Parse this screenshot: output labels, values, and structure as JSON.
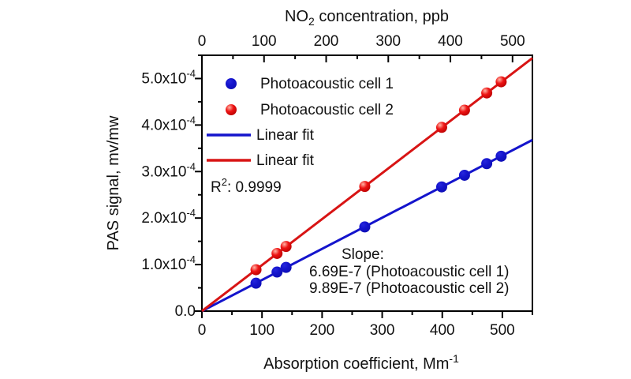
{
  "figure_background": "#ffffff",
  "chart_data": {
    "type": "scatter",
    "grid": false,
    "axes": {
      "top": {
        "title_parts": [
          {
            "t": "NO"
          },
          {
            "t": "2",
            "script": "sub"
          },
          {
            "t": " concentration, ppb"
          }
        ],
        "tick_values": [
          0,
          100,
          200,
          300,
          400,
          500
        ],
        "tick_labels": [
          "0",
          "100",
          "200",
          "300",
          "400",
          "500"
        ],
        "minor_step": 50,
        "range": [
          0,
          532
        ],
        "unit": "ppb"
      },
      "bottom": {
        "title_parts": [
          {
            "t": "Absorption coefficient, Mm"
          },
          {
            "t": "-1",
            "script": "sup"
          }
        ],
        "tick_values": [
          0,
          100,
          200,
          300,
          400,
          500
        ],
        "tick_labels": [
          "0",
          "100",
          "200",
          "300",
          "400",
          "500"
        ],
        "minor_step": 50,
        "range": [
          0,
          550
        ],
        "unit": "Mm^-1"
      },
      "left": {
        "title": "PAS signal, mv/mw",
        "tick_values": [
          0,
          0.0001,
          0.0002,
          0.0003,
          0.0004,
          0.0005
        ],
        "tick_labels": [
          [
            {
              "t": "0.0"
            }
          ],
          [
            {
              "t": "1.0x10"
            },
            {
              "t": "-4",
              "script": "sup"
            }
          ],
          [
            {
              "t": "2.0x10"
            },
            {
              "t": "-4",
              "script": "sup"
            }
          ],
          [
            {
              "t": "3.0x10"
            },
            {
              "t": "-4",
              "script": "sup"
            }
          ],
          [
            {
              "t": "4.0x10"
            },
            {
              "t": "-4",
              "script": "sup"
            }
          ],
          [
            {
              "t": "5.0x10"
            },
            {
              "t": "-4",
              "script": "sup"
            }
          ]
        ],
        "minor_step": 5e-05,
        "range": [
          0,
          0.00055
        ]
      }
    },
    "series": [
      {
        "name": "Photoacoustic cell 1",
        "color": "#1414cc",
        "marker": "circle-flat",
        "x": [
          90,
          125,
          140,
          271,
          399,
          437,
          474,
          498
        ],
        "y": [
          6e-05,
          8.4e-05,
          9.4e-05,
          0.000181,
          0.000267,
          0.000292,
          0.000317,
          0.000333
        ]
      },
      {
        "name": "Photoacoustic cell 2",
        "color": "#e01010",
        "marker": "circle-sphere",
        "x": [
          90,
          125,
          140,
          271,
          399,
          437,
          474,
          498
        ],
        "y": [
          8.9e-05,
          0.000124,
          0.000139,
          0.000268,
          0.000395,
          0.000432,
          0.000469,
          0.000493
        ]
      }
    ],
    "fits": [
      {
        "name": "Linear fit",
        "color": "#1414cc",
        "slope": 6.69e-07,
        "intercept": 0,
        "x_range": [
          0,
          550
        ]
      },
      {
        "name": "Linear fit",
        "color": "#d81414",
        "slope": 9.89e-07,
        "intercept": 0,
        "x_range": [
          0,
          550
        ]
      }
    ],
    "legend": {
      "position": "upper-left-inside",
      "entries": [
        {
          "type": "marker",
          "color": "#1414cc",
          "sphere": false,
          "label": "Photoacoustic cell 1"
        },
        {
          "type": "marker",
          "color": "#e01010",
          "sphere": true,
          "label": "Photoacoustic cell 2"
        },
        {
          "type": "line",
          "color": "#1414cc",
          "label": "Linear fit"
        },
        {
          "type": "line",
          "color": "#d81414",
          "label": "Linear fit"
        }
      ]
    },
    "annotations": {
      "r_squared_parts": [
        {
          "t": "R"
        },
        {
          "t": "2",
          "script": "sup"
        },
        {
          "t": ": 0.9999"
        }
      ],
      "slope_heading": "Slope:",
      "slope_lines": [
        "6.69E-7 (Photoacoustic cell 1)",
        "9.89E-7 (Photoacoustic cell 2)"
      ]
    }
  }
}
